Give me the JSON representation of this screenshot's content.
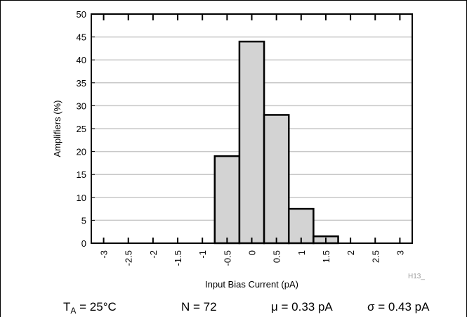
{
  "chart_data": {
    "type": "bar",
    "categories": [
      "-0.5",
      "0",
      "0.5",
      "1",
      "1.5"
    ],
    "bins": [
      {
        "x_start": -0.75,
        "x_end": -0.25,
        "value": 19
      },
      {
        "x_start": -0.25,
        "x_end": 0.25,
        "value": 44
      },
      {
        "x_start": 0.25,
        "x_end": 0.75,
        "value": 28
      },
      {
        "x_start": 0.75,
        "x_end": 1.25,
        "value": 7.5
      },
      {
        "x_start": 1.25,
        "x_end": 1.75,
        "value": 1.5
      }
    ],
    "xlabel": "Input Bias Current (pA)",
    "ylabel": "Amplifiers (%)",
    "xlim": [
      -3.25,
      3.25
    ],
    "ylim": [
      0,
      50
    ],
    "x_ticks": [
      "-3",
      "-2.5",
      "-2",
      "-1.5",
      "-1",
      "-0.5",
      "0",
      "0.5",
      "1",
      "1.5",
      "2",
      "2.5",
      "3"
    ],
    "y_ticks": [
      "0",
      "5",
      "10",
      "15",
      "20",
      "25",
      "30",
      "35",
      "40",
      "45",
      "50"
    ],
    "grid": true,
    "watermark": "H13_",
    "colors": {
      "bar_fill": "#d3d3d3",
      "bar_edge": "#000000",
      "grid": "#c8c8c8"
    }
  },
  "caption": {
    "ta_label": "T",
    "ta_sub": "A",
    "ta_value": " = 25°C",
    "n": "N = 72",
    "mu": "μ = 0.33 pA",
    "sigma": "σ = 0.43 pA"
  }
}
